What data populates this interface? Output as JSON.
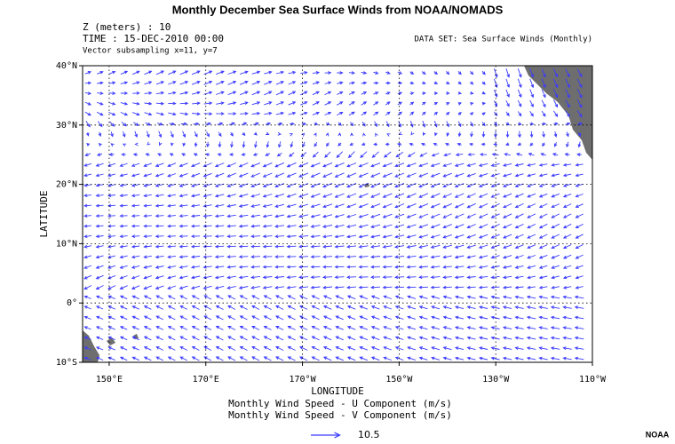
{
  "title": "Monthly December Sea Surface Winds from NOAA/NOMADS",
  "header": {
    "level": "Z (meters) : 10",
    "time": "TIME : 15-DEC-2010 00:00",
    "subsampling": "Vector subsampling x=11, y=7",
    "dataset": "DATA SET: Sea Surface Winds (Monthly)"
  },
  "map": {
    "xlabel": "LONGITUDE",
    "ylabel": "LATITUDE",
    "xlim": [
      144.5,
      250
    ],
    "ylim": [
      -10,
      40
    ],
    "xticks": [
      {
        "value": 150,
        "label": "150°E"
      },
      {
        "value": 170,
        "label": "170°E"
      },
      {
        "value": 190,
        "label": "170°W"
      },
      {
        "value": 210,
        "label": "150°W"
      },
      {
        "value": 230,
        "label": "130°W"
      },
      {
        "value": 250,
        "label": "110°W"
      }
    ],
    "yticks": [
      {
        "value": 40,
        "label": "40°N"
      },
      {
        "value": 30,
        "label": "30°N"
      },
      {
        "value": 20,
        "label": "20°N"
      },
      {
        "value": 10,
        "label": "10°N"
      },
      {
        "value": 0,
        "label": "0°"
      },
      {
        "value": -10,
        "label": "10°S"
      }
    ],
    "grid": true,
    "vector_color": "#3a3aff",
    "land_color": "#6e6e6e"
  },
  "legend": {
    "line1": "Monthly Wind Speed - U Component (m/s)",
    "line2": "Monthly Wind Speed - V Component (m/s)",
    "reference": 10.5
  },
  "credit": "NOAA"
}
